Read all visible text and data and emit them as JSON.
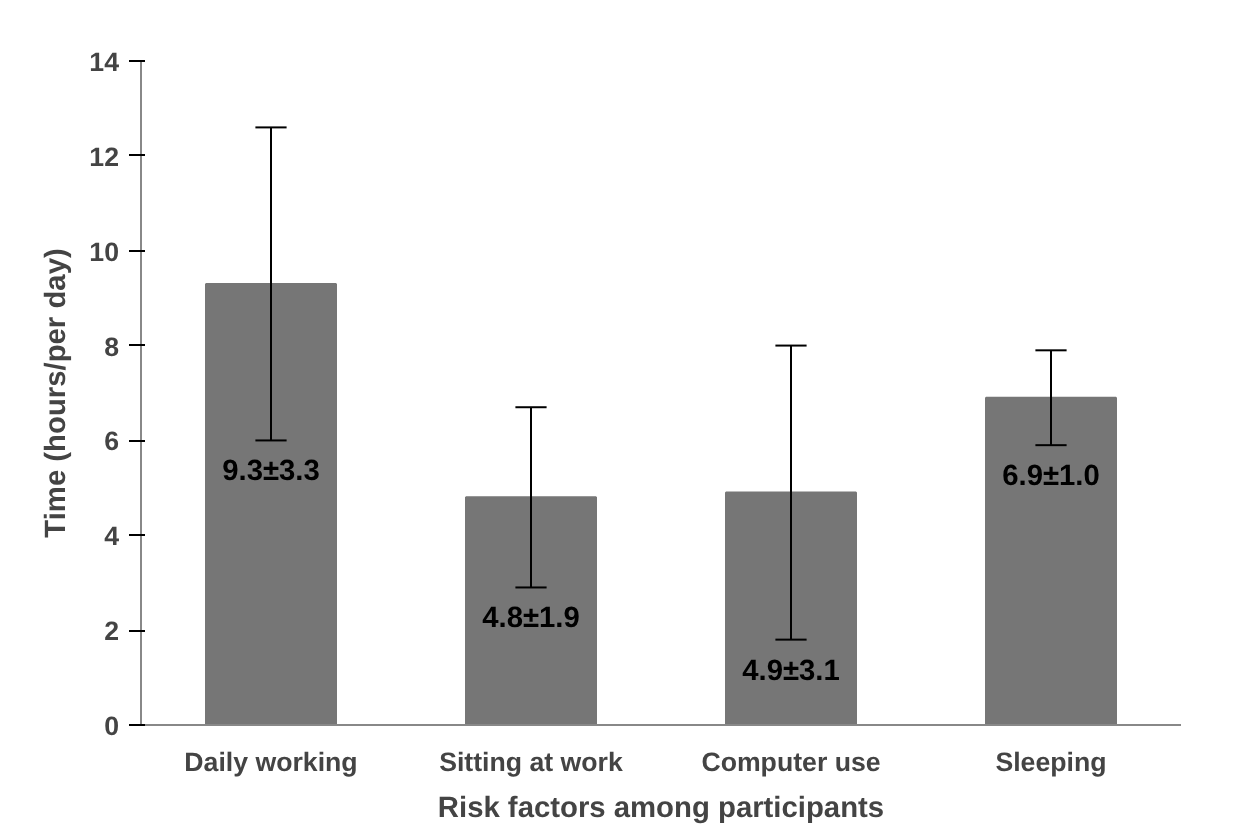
{
  "chart_data": {
    "type": "bar",
    "xlabel": "Risk factors among participants",
    "ylabel": "Time (hours/per day)",
    "categories": [
      "Daily working",
      "Sitting at work",
      "Computer use",
      "Sleeping"
    ],
    "values": [
      9.3,
      4.8,
      4.9,
      6.9
    ],
    "errors": [
      3.3,
      1.9,
      3.1,
      1.0
    ],
    "value_labels": [
      "9.3±3.3",
      "4.8±1.9",
      "4.9±3.1",
      "6.9±1.0"
    ],
    "color": "#767676",
    "ylim": [
      0,
      14
    ],
    "yticks": [
      0,
      2,
      4,
      6,
      8,
      10,
      12,
      14
    ],
    "grid": false
  }
}
